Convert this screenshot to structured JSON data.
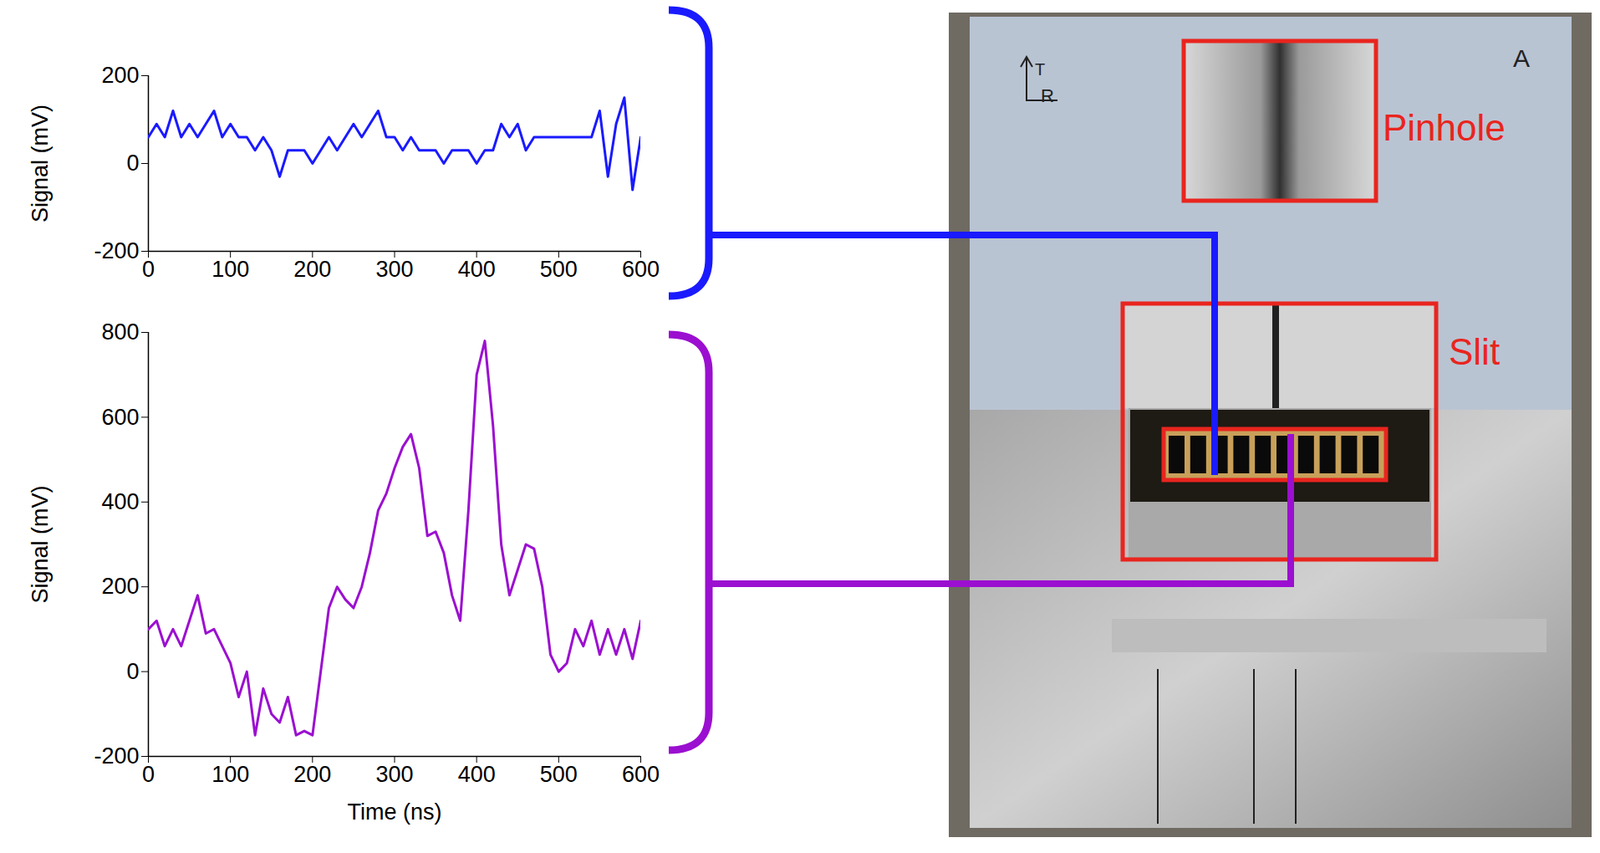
{
  "chart_data": [
    {
      "type": "line",
      "ylabel": "Signal (mV)",
      "x": [
        0,
        10,
        20,
        30,
        40,
        50,
        60,
        70,
        80,
        90,
        100,
        110,
        120,
        130,
        140,
        150,
        160,
        170,
        180,
        190,
        200,
        210,
        220,
        230,
        240,
        250,
        260,
        270,
        280,
        290,
        300,
        310,
        320,
        330,
        340,
        350,
        360,
        370,
        380,
        390,
        400,
        410,
        420,
        430,
        440,
        450,
        460,
        470,
        480,
        490,
        500,
        510,
        520,
        530,
        540,
        550,
        560,
        570,
        580,
        590,
        600
      ],
      "series": [
        {
          "color": "#1a1aff",
          "values": [
            60,
            90,
            60,
            120,
            60,
            90,
            60,
            90,
            120,
            60,
            90,
            60,
            60,
            30,
            60,
            30,
            -30,
            30,
            30,
            30,
            0,
            30,
            60,
            30,
            60,
            90,
            60,
            90,
            120,
            60,
            60,
            30,
            60,
            30,
            30,
            30,
            0,
            30,
            30,
            30,
            0,
            30,
            30,
            90,
            60,
            90,
            30,
            60,
            60,
            60,
            60,
            60,
            60,
            60,
            60,
            120,
            -30,
            90,
            150,
            -60,
            60
          ]
        }
      ],
      "xlim": [
        0,
        600
      ],
      "xticks": [
        0,
        100,
        200,
        300,
        400,
        500,
        600
      ],
      "ylim": [
        -200,
        200
      ],
      "yticks": [
        -200,
        0,
        200
      ]
    },
    {
      "type": "line",
      "xlabel": "Time (ns)",
      "ylabel": "Signal (mV)",
      "x": [
        0,
        10,
        20,
        30,
        40,
        50,
        60,
        70,
        80,
        90,
        100,
        110,
        120,
        130,
        140,
        150,
        160,
        170,
        180,
        190,
        200,
        210,
        220,
        230,
        240,
        250,
        260,
        270,
        280,
        290,
        300,
        310,
        320,
        330,
        340,
        350,
        360,
        370,
        380,
        390,
        400,
        410,
        420,
        430,
        440,
        450,
        460,
        470,
        480,
        490,
        500,
        510,
        520,
        530,
        540,
        550,
        560,
        570,
        580,
        590,
        600
      ],
      "series": [
        {
          "color": "#9b0fd0",
          "values": [
            100,
            120,
            60,
            100,
            60,
            120,
            180,
            90,
            100,
            60,
            20,
            -60,
            0,
            -150,
            -40,
            -100,
            -120,
            -60,
            -150,
            -140,
            -150,
            0,
            150,
            200,
            170,
            150,
            200,
            280,
            380,
            420,
            480,
            530,
            560,
            480,
            320,
            330,
            280,
            180,
            120,
            380,
            700,
            780,
            580,
            300,
            180,
            240,
            300,
            290,
            200,
            40,
            0,
            20,
            100,
            60,
            120,
            40,
            100,
            40,
            100,
            30,
            120
          ]
        }
      ],
      "xlim": [
        0,
        600
      ],
      "xticks": [
        0,
        100,
        200,
        300,
        400,
        500,
        600
      ],
      "ylim": [
        -200,
        800
      ],
      "yticks": [
        -200,
        0,
        200,
        400,
        600,
        800
      ]
    }
  ],
  "photo": {
    "annotations": [
      "Pinhole",
      "Slit"
    ],
    "handwriting": [
      "A",
      "T",
      "R"
    ]
  }
}
